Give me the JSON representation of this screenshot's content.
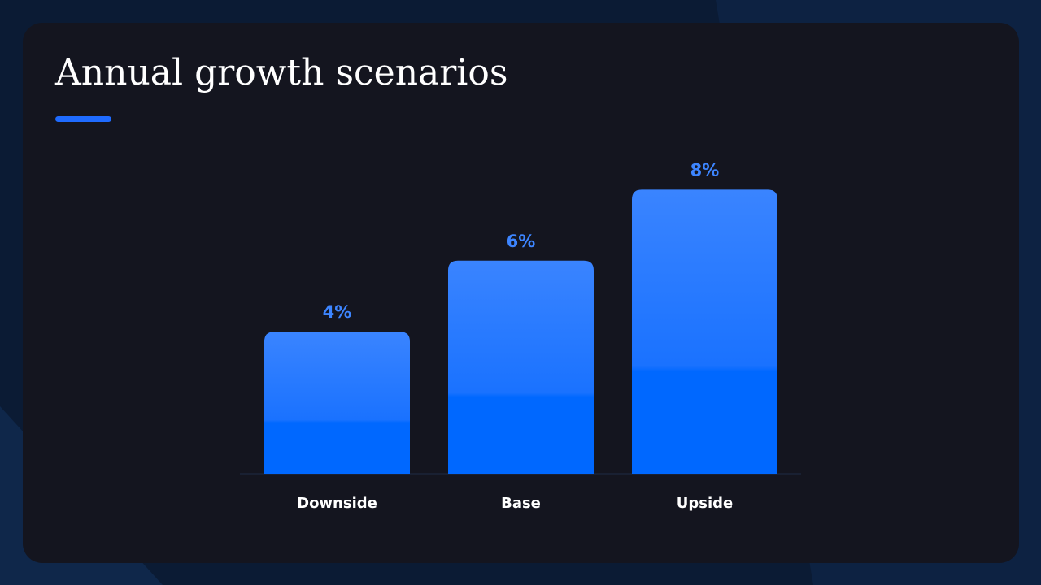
{
  "slide": {
    "title": "Annual growth scenarios"
  },
  "colors": {
    "page_background": "#0a1a33",
    "card_background": "#14151f",
    "accent": "#1f6bff",
    "bar_top": "#3a84ff",
    "bar_bottom": "#0068ff",
    "value_label": "#3d85ff",
    "category_label": "#ffffff",
    "baseline": "#1e2a44"
  },
  "chart_data": {
    "type": "bar",
    "title": "Annual growth scenarios",
    "categories": [
      "Downside",
      "Base",
      "Upside"
    ],
    "values": [
      4,
      6,
      8
    ],
    "value_labels": [
      "4%",
      "6%",
      "8%"
    ],
    "unit": "%",
    "ylim": [
      0,
      8.5
    ],
    "grid": false,
    "legend": "none"
  }
}
